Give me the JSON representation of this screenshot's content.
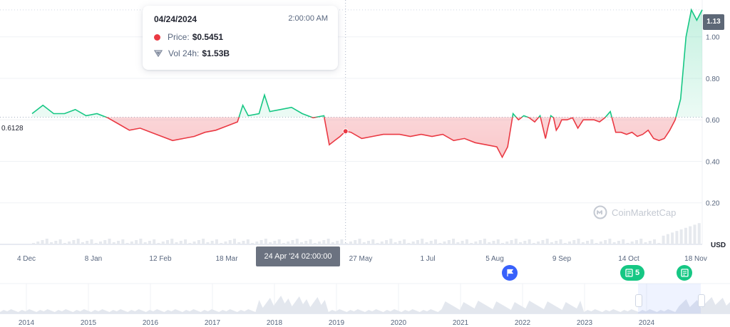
{
  "tooltip": {
    "date": "04/24/2024",
    "time": "2:00:00 AM",
    "price_label": "Price:",
    "price_value": "$0.5451",
    "volume_label": "Vol 24h:",
    "volume_value": "$1.53B"
  },
  "current_price_label": "1.13",
  "reference_price_label": "0.6128",
  "crosshair_label": "24 Apr '24 02:00:00",
  "currency_label": "USD",
  "watermark": "CoinMarketCap",
  "events": {
    "flag_icon": "flag-icon",
    "news_count_label": "5",
    "news_icon": "document-icon"
  },
  "colors": {
    "up": "#16c784",
    "down": "#ea3943",
    "flag_badge": "#3861fb"
  },
  "chart_data": {
    "type": "line",
    "title": "",
    "xlabel": "",
    "ylabel": "",
    "x_tick_labels": [
      "4 Dec",
      "8 Jan",
      "12 Feb",
      "18 Mar",
      "24 Apr '24 02:00:00",
      "27 May",
      "1 Jul",
      "5 Aug",
      "9 Sep",
      "14 Oct",
      "18 Nov"
    ],
    "y_tick_labels": [
      "0.20",
      "0.40",
      "0.60",
      "0.80",
      "1.00"
    ],
    "ylim": [
      0.0,
      1.15
    ],
    "reference_line": 0.6128,
    "grid": true,
    "series": [
      {
        "values": [
          [
            0,
            0.63
          ],
          [
            0.02,
            0.67
          ],
          [
            0.04,
            0.63
          ],
          [
            0.06,
            0.63
          ],
          [
            0.08,
            0.65
          ],
          [
            0.1,
            0.62
          ],
          [
            0.12,
            0.63
          ],
          [
            0.14,
            0.61
          ],
          [
            0.16,
            0.58
          ],
          [
            0.18,
            0.55
          ],
          [
            0.2,
            0.56
          ],
          [
            0.22,
            0.54
          ],
          [
            0.24,
            0.52
          ],
          [
            0.26,
            0.5
          ],
          [
            0.28,
            0.51
          ],
          [
            0.3,
            0.52
          ],
          [
            0.32,
            0.54
          ],
          [
            0.34,
            0.55
          ],
          [
            0.36,
            0.57
          ],
          [
            0.38,
            0.59
          ],
          [
            0.39,
            0.67
          ],
          [
            0.4,
            0.62
          ],
          [
            0.42,
            0.63
          ],
          [
            0.43,
            0.72
          ],
          [
            0.44,
            0.64
          ],
          [
            0.46,
            0.65
          ],
          [
            0.48,
            0.66
          ],
          [
            0.5,
            0.63
          ],
          [
            0.52,
            0.61
          ],
          [
            0.54,
            0.62
          ],
          [
            0.55,
            0.48
          ],
          [
            0.56,
            0.5
          ],
          [
            0.57,
            0.52
          ],
          [
            0.58,
            0.5451
          ],
          [
            0.59,
            0.54
          ],
          [
            0.61,
            0.51
          ],
          [
            0.63,
            0.52
          ],
          [
            0.65,
            0.53
          ],
          [
            0.68,
            0.53
          ],
          [
            0.7,
            0.52
          ],
          [
            0.72,
            0.53
          ],
          [
            0.74,
            0.52
          ],
          [
            0.76,
            0.53
          ],
          [
            0.78,
            0.5
          ],
          [
            0.8,
            0.51
          ],
          [
            0.82,
            0.49
          ],
          [
            0.84,
            0.48
          ],
          [
            0.86,
            0.47
          ],
          [
            0.87,
            0.42
          ],
          [
            0.88,
            0.47
          ],
          [
            0.89,
            0.63
          ],
          [
            0.9,
            0.6
          ],
          [
            0.91,
            0.62
          ],
          [
            0.92,
            0.61
          ],
          [
            0.93,
            0.59
          ],
          [
            0.94,
            0.62
          ],
          [
            0.95,
            0.51
          ],
          [
            0.955,
            0.57
          ],
          [
            0.96,
            0.62
          ],
          [
            0.965,
            0.61
          ],
          [
            0.97,
            0.55
          ],
          [
            0.975,
            0.57
          ],
          [
            0.98,
            0.6
          ],
          [
            0.99,
            0.6
          ],
          [
            1.0,
            0.61
          ],
          [
            1.01,
            0.56
          ],
          [
            1.02,
            0.6
          ],
          [
            1.03,
            0.6
          ],
          [
            1.04,
            0.6
          ],
          [
            1.05,
            0.59
          ],
          [
            1.06,
            0.61
          ],
          [
            1.07,
            0.64
          ],
          [
            1.08,
            0.54
          ],
          [
            1.09,
            0.54
          ],
          [
            1.1,
            0.53
          ],
          [
            1.11,
            0.54
          ],
          [
            1.12,
            0.52
          ],
          [
            1.13,
            0.53
          ],
          [
            1.14,
            0.55
          ],
          [
            1.15,
            0.51
          ],
          [
            1.16,
            0.5
          ],
          [
            1.17,
            0.51
          ],
          [
            1.18,
            0.55
          ],
          [
            1.19,
            0.6
          ],
          [
            1.2,
            0.7
          ],
          [
            1.21,
            1.0
          ],
          [
            1.22,
            1.13
          ],
          [
            1.23,
            1.08
          ],
          [
            1.24,
            1.13
          ]
        ]
      }
    ],
    "navigator": {
      "x_tick_labels": [
        "2014",
        "2015",
        "2016",
        "2017",
        "2018",
        "2019",
        "2020",
        "2021",
        "2022",
        "2023",
        "2024"
      ]
    }
  }
}
